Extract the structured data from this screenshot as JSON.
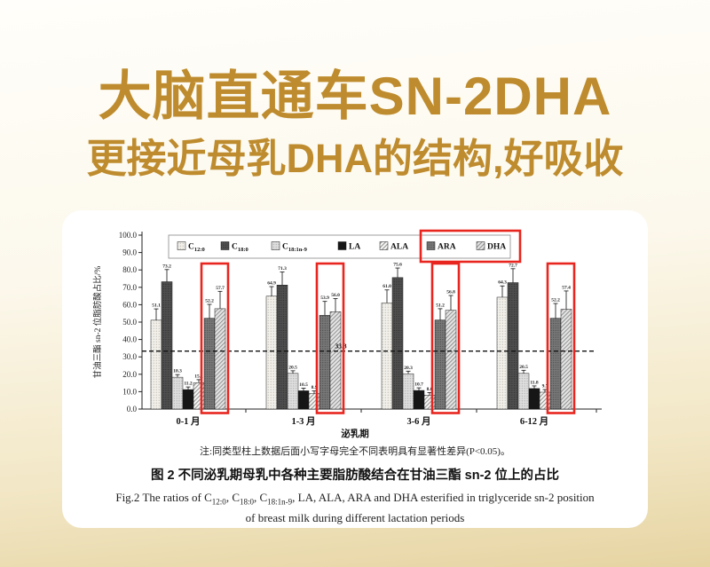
{
  "page": {
    "headline": "大脑直通车SN-2DHA",
    "subheadline": "更接近母乳DHA的结构,好吸收",
    "colors": {
      "headline_gold": "#BE8C2E",
      "highlight_red": "#E8251E",
      "card_bg": "#FFFFFF",
      "background_top": "#FFFEFA",
      "background_bottom": "#E6D4A2"
    }
  },
  "figure": {
    "note": "注:同类型柱上数据后面小写字母完全不同表明具有显著性差异(P<0.05)。",
    "caption_zh": "图 2  不同泌乳期母乳中各种主要脂肪酸结合在甘油三酯 sn-2 位上的占比",
    "caption_en_segments": [
      {
        "t": "Fig.2  The ratios of C"
      },
      {
        "sub": "12:0"
      },
      {
        "t": ", C"
      },
      {
        "sub": "18:0"
      },
      {
        "t": ", C"
      },
      {
        "sub": "18:1n-9"
      },
      {
        "t": ", LA, ALA, ARA and DHA esterified in triglyceride sn-2 position"
      },
      {
        "br": true
      },
      {
        "t": "of breast milk during different lactation periods"
      }
    ]
  },
  "chart_data": {
    "type": "bar",
    "title": "",
    "xlabel": "泌乳期",
    "ylabel": "甘油三酯 sn-2 位脂肪酸占比/%",
    "ylim": [
      0,
      100
    ],
    "ytick_step": 10,
    "grid": false,
    "legend_position": "top",
    "reference_line": {
      "value": 33.3,
      "label": "33.3",
      "style": "dashed"
    },
    "categories": [
      "0-1 月",
      "1-3 月",
      "3-6 月",
      "6-12 月"
    ],
    "series": [
      {
        "name": "C12:0",
        "base": "C",
        "sub": "12:0",
        "pattern": "dots-light",
        "values": [
          51.1,
          64.9,
          61.0,
          64.3
        ],
        "errors": [
          6.5,
          5.5,
          7.5,
          6.5
        ]
      },
      {
        "name": "C18:0",
        "base": "C",
        "sub": "18:0",
        "pattern": "dots-dark",
        "values": [
          73.2,
          71.3,
          75.6,
          72.7
        ],
        "errors": [
          7.0,
          7.5,
          5.5,
          8.0
        ]
      },
      {
        "name": "C18:1n-9",
        "base": "C",
        "sub": "18:1n-9",
        "pattern": "dots-gray",
        "values": [
          18.3,
          20.5,
          20.3,
          20.5
        ],
        "errors": [
          1.5,
          1.5,
          1.5,
          1.8
        ]
      },
      {
        "name": "LA",
        "pattern": "solid-black",
        "values": [
          11.2,
          10.5,
          10.7,
          11.8
        ],
        "errors": [
          1.5,
          1.5,
          1.5,
          1.5
        ]
      },
      {
        "name": "ALA",
        "pattern": "hatch-light",
        "values": [
          15.1,
          8.9,
          8.0,
          9.7
        ],
        "errors": [
          1.8,
          1.5,
          1.5,
          1.5
        ]
      },
      {
        "name": "ARA",
        "pattern": "dots-mid",
        "values": [
          52.2,
          53.9,
          51.2,
          52.2
        ],
        "errors": [
          8.0,
          8.0,
          6.5,
          8.5
        ],
        "highlighted": true
      },
      {
        "name": "DHA",
        "pattern": "hatch-gray",
        "values": [
          57.7,
          56.0,
          56.8,
          57.4
        ],
        "errors": [
          10.0,
          7.5,
          8.5,
          10.5
        ],
        "highlighted": true
      }
    ],
    "highlighted_series": [
      "ARA",
      "DHA"
    ],
    "highlight_color": "#E8251E"
  }
}
